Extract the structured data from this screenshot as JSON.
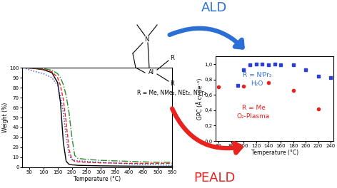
{
  "chart_data": [
    {
      "type": "line",
      "x_label": "Temperature (°C)",
      "y_label": "Weight (%)",
      "x": [
        30,
        60,
        100,
        130,
        150,
        160,
        170,
        180,
        190,
        200,
        210,
        220,
        250,
        300,
        400,
        500,
        550
      ],
      "series": [
        {
          "color": "#000000",
          "line_style": "solid",
          "values": [
            100,
            99.5,
            98,
            95,
            85,
            65,
            25,
            6,
            3,
            2.5,
            2.3,
            2,
            1.8,
            1.5,
            1.2,
            1,
            1
          ]
        },
        {
          "color": "#e8231f",
          "line_style": "dashed",
          "values": [
            100,
            99.5,
            98.5,
            96,
            90,
            82,
            68,
            45,
            18,
            8,
            6,
            5.5,
            5,
            4.5,
            4,
            4,
            4
          ]
        },
        {
          "color": "#2b3fd6",
          "line_style": "dotted",
          "values": [
            100,
            97,
            94,
            90,
            82,
            72,
            55,
            30,
            12,
            8,
            7,
            6.5,
            6,
            5,
            3.5,
            2.5,
            2
          ]
        },
        {
          "color": "#2e8b2e",
          "line_style": "dashdot",
          "values": [
            100,
            99.8,
            99,
            97.5,
            94,
            90,
            83,
            72,
            55,
            30,
            12,
            9,
            8,
            7,
            6,
            5,
            5
          ]
        }
      ],
      "xlim": [
        25,
        550
      ],
      "xticks": [
        50,
        100,
        150,
        200,
        250,
        300,
        350,
        400,
        450,
        500,
        550
      ],
      "ylim": [
        0,
        100
      ],
      "yticks": [
        0,
        10,
        20,
        30,
        40,
        50,
        60,
        70,
        80,
        90,
        100
      ]
    },
    {
      "type": "scatter",
      "x_label": "Temperature (°C)",
      "y_label": "GPC (Å cycle⁻¹)",
      "series": [
        {
          "color": "#2b3fd6",
          "marker": "square",
          "x": [
            90,
            100,
            110,
            120,
            130,
            140,
            150,
            160,
            180,
            200,
            220,
            240
          ],
          "values": [
            0.72,
            0.93,
            0.99,
            1.0,
            1.0,
            0.99,
            1.0,
            0.99,
            0.99,
            0.93,
            0.84,
            0.82
          ]
        },
        {
          "color": "#e8231f",
          "marker": "circle",
          "x": [
            60,
            100,
            140,
            180,
            220
          ],
          "values": [
            0.7,
            0.71,
            0.76,
            0.66,
            0.42
          ]
        }
      ],
      "xlim": [
        55,
        245
      ],
      "xticks": [
        60,
        80,
        100,
        120,
        140,
        160,
        180,
        200,
        220,
        240
      ],
      "ylim": [
        0,
        1.1
      ],
      "yticks": [
        {
          "value": 0.0,
          "label": "0,0"
        },
        {
          "value": 0.2,
          "label": "0,2"
        },
        {
          "value": 0.4,
          "label": "0,4"
        },
        {
          "value": 0.6,
          "label": "0,6"
        },
        {
          "value": 0.8,
          "label": "0,8"
        },
        {
          "value": 1.0,
          "label": "1,0"
        }
      ]
    }
  ],
  "diagram": {
    "ald": {
      "title": "ALD",
      "line1": "R = NⁱPr₂",
      "line2": "H₂O",
      "color": "#2b6fd6"
    },
    "peald": {
      "title": "PEALD",
      "line1": "R = Me",
      "line2": "O₂-Plasma",
      "color": "#e8231f"
    },
    "molecule": {
      "n": "N",
      "al": "Al",
      "r": "R",
      "caption": "R = Me, NMe₂, NEt₂, NⁱPr₂"
    }
  }
}
